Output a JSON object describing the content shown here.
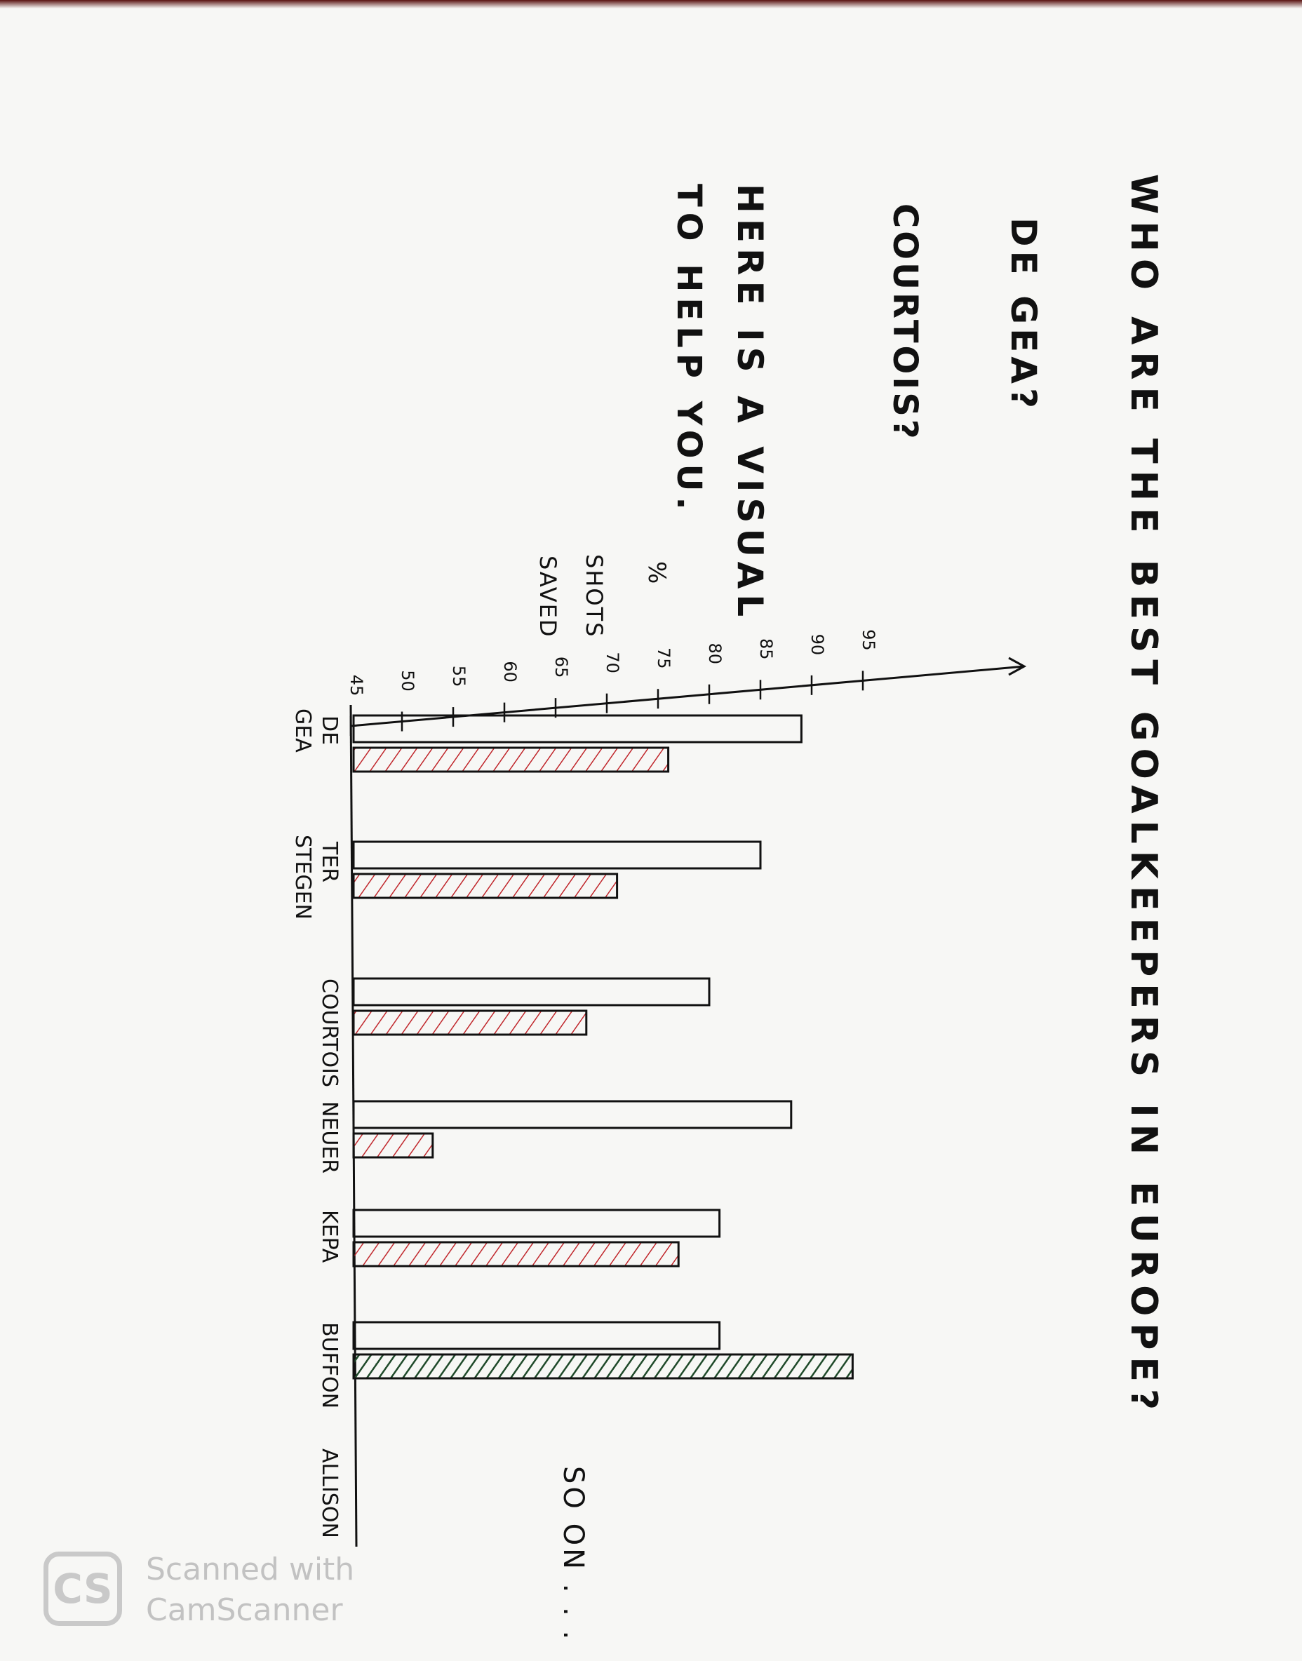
{
  "question": {
    "title": "WHO ARE THE BEST GOALKEEPERS IN EUROPE?",
    "line1": "DE GEA?",
    "line2": "COURTOIS?",
    "intro_line1": "HERE IS A VISUAL",
    "intro_line2": "TO HELP YOU."
  },
  "axis_unit": {
    "pct": "%",
    "shots": "SHOTS",
    "saved": "SAVED"
  },
  "trailing_note": "SO ON . . .",
  "watermark": {
    "logo": "CS",
    "line1": "Scanned with",
    "line2": "CamScanner"
  },
  "colors": {
    "ink": "#111111",
    "red_hatch": "#c0262b",
    "green_hatch": "#1f4a2a",
    "paper": "#f7f7f5"
  },
  "chart_data": {
    "type": "bar",
    "orientation": "rotated 90° (values grow rightward on the page)",
    "title": "WHO ARE THE BEST GOALKEEPERS IN EUROPE?",
    "ylabel": "% SHOTS SAVED",
    "ylim": [
      45,
      95
    ],
    "ticks": [
      "45",
      "50",
      "55",
      "60",
      "65",
      "70",
      "75",
      "80",
      "85",
      "90",
      "95"
    ],
    "categories": [
      {
        "label": "DE",
        "label2": "GEA"
      },
      {
        "label": "TER",
        "label2": "STEGEN"
      },
      {
        "label": "COURTOIS",
        "label2": ""
      },
      {
        "label": "NEUER",
        "label2": ""
      },
      {
        "label": "KEPA",
        "label2": ""
      },
      {
        "label": "BUFFON",
        "label2": ""
      },
      {
        "label": "ALLISON",
        "label2": ""
      }
    ],
    "series": [
      {
        "style": "outline",
        "values": [
          89,
          85,
          80,
          88,
          81,
          81,
          null
        ]
      },
      {
        "style": "hatched",
        "values": [
          76,
          71,
          68,
          53,
          77,
          94,
          null
        ]
      }
    ],
    "hatch_colors": [
      "red",
      "red",
      "red",
      "red",
      "red",
      "green",
      null
    ],
    "grid": false,
    "legend": "none"
  }
}
